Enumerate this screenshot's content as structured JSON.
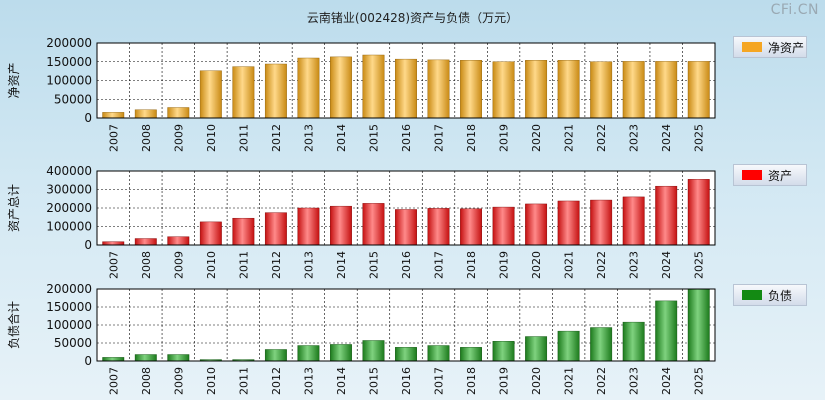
{
  "title": "云南锗业(002428)资产与负债（万元）",
  "watermark": "CFi.CN",
  "colors": {
    "equity": "#f5a623",
    "assets": "#ff0000",
    "liabilities": "#138a13"
  },
  "chart_data": [
    {
      "type": "bar",
      "ylabel": "净资产",
      "legend": "净资产",
      "ylim": [
        0,
        200000
      ],
      "yticks": [
        0,
        50000,
        100000,
        150000,
        200000
      ],
      "categories": [
        "2007",
        "2008",
        "2009",
        "2010",
        "2011",
        "2012",
        "2013",
        "2014",
        "2015",
        "2016",
        "2017",
        "2018",
        "2019",
        "2020",
        "2021",
        "2022",
        "2023",
        "2024",
        "2025"
      ],
      "values": [
        15000,
        22000,
        28000,
        126000,
        137000,
        144000,
        160000,
        163000,
        168000,
        157000,
        155000,
        154000,
        150000,
        154000,
        154000,
        150000,
        151000,
        151000,
        151000
      ]
    },
    {
      "type": "bar",
      "ylabel": "资产总计",
      "legend": "资产",
      "ylim": [
        0,
        400000
      ],
      "yticks": [
        0,
        100000,
        200000,
        300000,
        400000
      ],
      "categories": [
        "2007",
        "2008",
        "2009",
        "2010",
        "2011",
        "2012",
        "2013",
        "2014",
        "2015",
        "2016",
        "2017",
        "2018",
        "2019",
        "2020",
        "2021",
        "2022",
        "2023",
        "2024",
        "2025"
      ],
      "values": [
        18000,
        35000,
        45000,
        125000,
        145000,
        175000,
        200000,
        210000,
        225000,
        192000,
        198000,
        196000,
        205000,
        222000,
        238000,
        243000,
        260000,
        318000,
        355000
      ]
    },
    {
      "type": "bar",
      "ylabel": "负债合计",
      "legend": "负债",
      "ylim": [
        0,
        200000
      ],
      "yticks": [
        0,
        50000,
        100000,
        150000,
        200000
      ],
      "categories": [
        "2007",
        "2008",
        "2009",
        "2010",
        "2011",
        "2012",
        "2013",
        "2014",
        "2015",
        "2016",
        "2017",
        "2018",
        "2019",
        "2020",
        "2021",
        "2022",
        "2023",
        "2024",
        "2025"
      ],
      "values": [
        10000,
        18000,
        18000,
        4000,
        4000,
        32000,
        43000,
        46000,
        57000,
        38000,
        43000,
        38000,
        55000,
        68000,
        83000,
        93000,
        108000,
        167000,
        200000
      ]
    }
  ]
}
